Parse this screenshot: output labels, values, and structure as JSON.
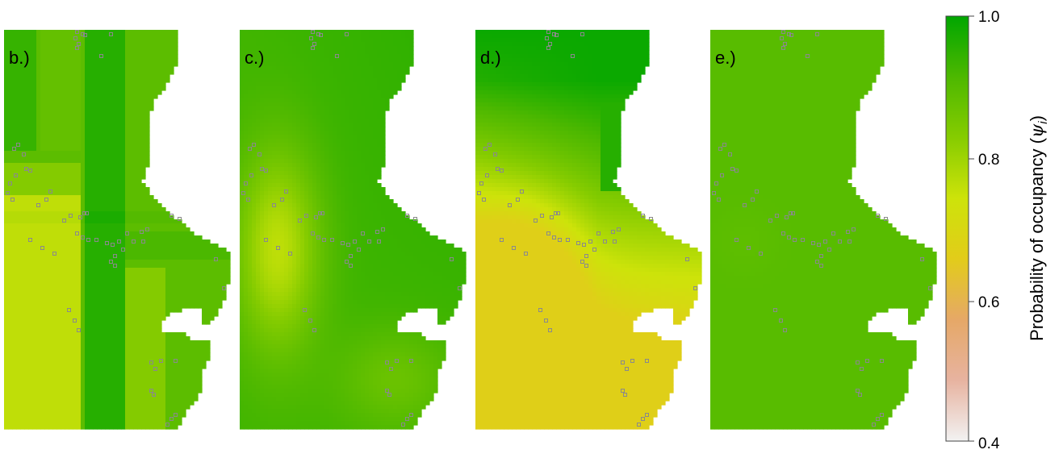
{
  "figure": {
    "panels": [
      {
        "label": "b.)",
        "pattern": "b"
      },
      {
        "label": "c.)",
        "pattern": "c"
      },
      {
        "label": "d.)",
        "pattern": "d"
      },
      {
        "label": "e.)",
        "pattern": "e"
      }
    ],
    "colorbar": {
      "title_main": "Probability of occupancy (",
      "title_symbol": "ψ",
      "title_sub": "i",
      "title_close": ")",
      "min": 0.4,
      "max": 1.0,
      "ticks": [
        "1.0",
        "0.8",
        "0.6",
        "0.4"
      ],
      "colors": [
        "#f2f2f2",
        "#e7b3a0",
        "#e6a867",
        "#e2cc1a",
        "#cde30a",
        "#86cc00",
        "#4db800",
        "#00a600"
      ]
    },
    "site_marker_color": "#8a8a8a"
  }
}
